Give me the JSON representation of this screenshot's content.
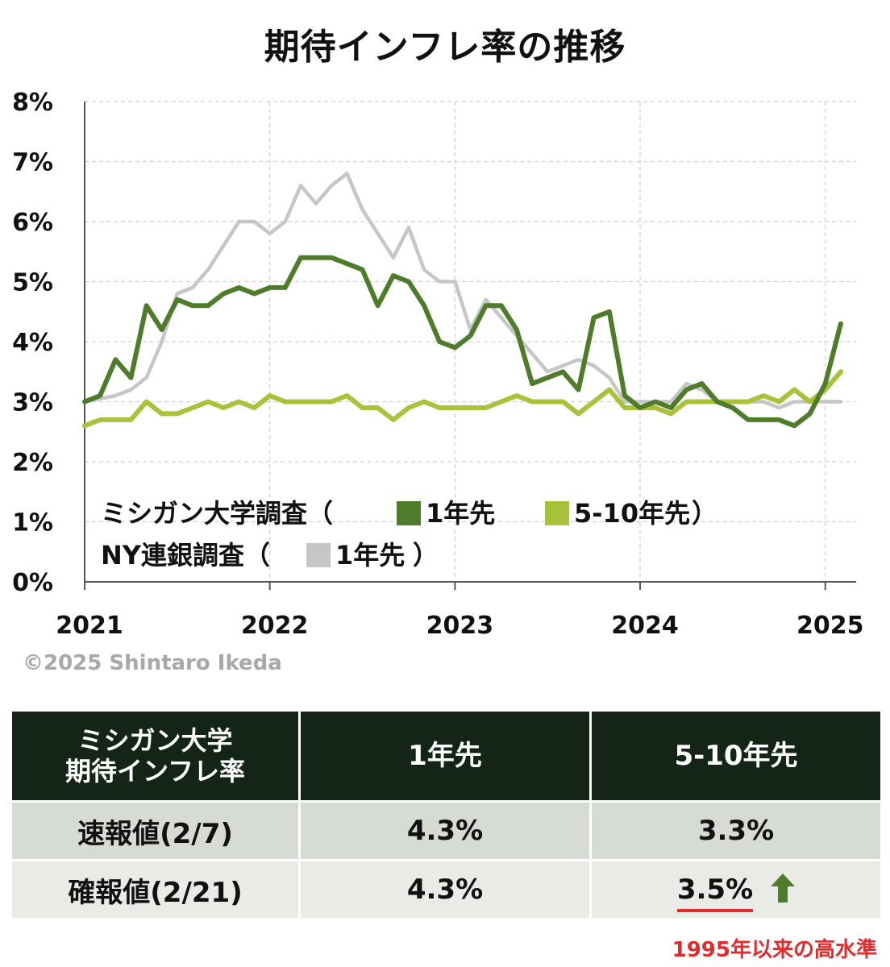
{
  "chart_data": {
    "type": "line",
    "title": "期待インフレ率の推移",
    "x_ticks": [
      "2021",
      "2022",
      "2023",
      "2024",
      "2025"
    ],
    "x_range": [
      "2021-01",
      "2025-03"
    ],
    "y_ticks": [
      "0%",
      "1%",
      "2%",
      "3%",
      "4%",
      "5%",
      "6%",
      "7%",
      "8%"
    ],
    "ylim": [
      0,
      8
    ],
    "grid": true,
    "legend_placement": "bottom-left",
    "legend": {
      "group1_label": "ミシガン大学調査（",
      "group1_close": "）",
      "group2_label": "NY連銀調査（",
      "group2_close": "）"
    },
    "series": [
      {
        "name": "1年先",
        "group": "ミシガン大学調査",
        "color": "#4e7c2a",
        "values": [
          [
            "2021-01",
            3.0
          ],
          [
            "2021-02",
            3.1
          ],
          [
            "2021-03",
            3.7
          ],
          [
            "2021-04",
            3.4
          ],
          [
            "2021-05",
            4.6
          ],
          [
            "2021-06",
            4.2
          ],
          [
            "2021-07",
            4.7
          ],
          [
            "2021-08",
            4.6
          ],
          [
            "2021-09",
            4.6
          ],
          [
            "2021-10",
            4.8
          ],
          [
            "2021-11",
            4.9
          ],
          [
            "2021-12",
            4.8
          ],
          [
            "2022-01",
            4.9
          ],
          [
            "2022-02",
            4.9
          ],
          [
            "2022-03",
            5.4
          ],
          [
            "2022-04",
            5.4
          ],
          [
            "2022-05",
            5.4
          ],
          [
            "2022-06",
            5.3
          ],
          [
            "2022-07",
            5.2
          ],
          [
            "2022-08",
            4.6
          ],
          [
            "2022-09",
            5.1
          ],
          [
            "2022-10",
            5.0
          ],
          [
            "2022-11",
            4.6
          ],
          [
            "2022-12",
            4.0
          ],
          [
            "2023-01",
            3.9
          ],
          [
            "2023-02",
            4.1
          ],
          [
            "2023-03",
            4.6
          ],
          [
            "2023-04",
            4.6
          ],
          [
            "2023-05",
            4.2
          ],
          [
            "2023-06",
            3.3
          ],
          [
            "2023-07",
            3.4
          ],
          [
            "2023-08",
            3.5
          ],
          [
            "2023-09",
            3.2
          ],
          [
            "2023-10",
            4.4
          ],
          [
            "2023-11",
            4.5
          ],
          [
            "2023-12",
            3.1
          ],
          [
            "2024-01",
            2.9
          ],
          [
            "2024-02",
            3.0
          ],
          [
            "2024-03",
            2.9
          ],
          [
            "2024-04",
            3.2
          ],
          [
            "2024-05",
            3.3
          ],
          [
            "2024-06",
            3.0
          ],
          [
            "2024-07",
            2.9
          ],
          [
            "2024-08",
            2.7
          ],
          [
            "2024-09",
            2.7
          ],
          [
            "2024-10",
            2.7
          ],
          [
            "2024-11",
            2.6
          ],
          [
            "2024-12",
            2.8
          ],
          [
            "2025-01",
            3.3
          ],
          [
            "2025-02",
            4.3
          ]
        ]
      },
      {
        "name": "5-10年先",
        "group": "ミシガン大学調査",
        "color": "#a8c23a",
        "values": [
          [
            "2021-01",
            2.6
          ],
          [
            "2021-02",
            2.7
          ],
          [
            "2021-03",
            2.7
          ],
          [
            "2021-04",
            2.7
          ],
          [
            "2021-05",
            3.0
          ],
          [
            "2021-06",
            2.8
          ],
          [
            "2021-07",
            2.8
          ],
          [
            "2021-08",
            2.9
          ],
          [
            "2021-09",
            3.0
          ],
          [
            "2021-10",
            2.9
          ],
          [
            "2021-11",
            3.0
          ],
          [
            "2021-12",
            2.9
          ],
          [
            "2022-01",
            3.1
          ],
          [
            "2022-02",
            3.0
          ],
          [
            "2022-03",
            3.0
          ],
          [
            "2022-04",
            3.0
          ],
          [
            "2022-05",
            3.0
          ],
          [
            "2022-06",
            3.1
          ],
          [
            "2022-07",
            2.9
          ],
          [
            "2022-08",
            2.9
          ],
          [
            "2022-09",
            2.7
          ],
          [
            "2022-10",
            2.9
          ],
          [
            "2022-11",
            3.0
          ],
          [
            "2022-12",
            2.9
          ],
          [
            "2023-01",
            2.9
          ],
          [
            "2023-02",
            2.9
          ],
          [
            "2023-03",
            2.9
          ],
          [
            "2023-04",
            3.0
          ],
          [
            "2023-05",
            3.1
          ],
          [
            "2023-06",
            3.0
          ],
          [
            "2023-07",
            3.0
          ],
          [
            "2023-08",
            3.0
          ],
          [
            "2023-09",
            2.8
          ],
          [
            "2023-10",
            3.0
          ],
          [
            "2023-11",
            3.2
          ],
          [
            "2023-12",
            2.9
          ],
          [
            "2024-01",
            2.9
          ],
          [
            "2024-02",
            2.9
          ],
          [
            "2024-03",
            2.8
          ],
          [
            "2024-04",
            3.0
          ],
          [
            "2024-05",
            3.0
          ],
          [
            "2024-06",
            3.0
          ],
          [
            "2024-07",
            3.0
          ],
          [
            "2024-08",
            3.0
          ],
          [
            "2024-09",
            3.1
          ],
          [
            "2024-10",
            3.0
          ],
          [
            "2024-11",
            3.2
          ],
          [
            "2024-12",
            3.0
          ],
          [
            "2025-01",
            3.2
          ],
          [
            "2025-02",
            3.5
          ]
        ]
      },
      {
        "name": "1年先",
        "group": "NY連銀調査",
        "color": "#c6c6c6",
        "values": [
          [
            "2021-01",
            3.0
          ],
          [
            "2021-02",
            3.05
          ],
          [
            "2021-03",
            3.1
          ],
          [
            "2021-04",
            3.2
          ],
          [
            "2021-05",
            3.4
          ],
          [
            "2021-06",
            4.0
          ],
          [
            "2021-07",
            4.8
          ],
          [
            "2021-08",
            4.9
          ],
          [
            "2021-09",
            5.2
          ],
          [
            "2021-10",
            5.6
          ],
          [
            "2021-11",
            6.0
          ],
          [
            "2021-12",
            6.0
          ],
          [
            "2022-01",
            5.8
          ],
          [
            "2022-02",
            6.0
          ],
          [
            "2022-03",
            6.6
          ],
          [
            "2022-04",
            6.3
          ],
          [
            "2022-05",
            6.6
          ],
          [
            "2022-06",
            6.8
          ],
          [
            "2022-07",
            6.2
          ],
          [
            "2022-08",
            5.8
          ],
          [
            "2022-09",
            5.4
          ],
          [
            "2022-10",
            5.9
          ],
          [
            "2022-11",
            5.2
          ],
          [
            "2022-12",
            5.0
          ],
          [
            "2023-01",
            5.0
          ],
          [
            "2023-02",
            4.2
          ],
          [
            "2023-03",
            4.7
          ],
          [
            "2023-04",
            4.4
          ],
          [
            "2023-05",
            4.1
          ],
          [
            "2023-06",
            3.8
          ],
          [
            "2023-07",
            3.5
          ],
          [
            "2023-08",
            3.6
          ],
          [
            "2023-09",
            3.7
          ],
          [
            "2023-10",
            3.6
          ],
          [
            "2023-11",
            3.4
          ],
          [
            "2023-12",
            3.0
          ],
          [
            "2024-01",
            3.0
          ],
          [
            "2024-02",
            3.0
          ],
          [
            "2024-03",
            3.0
          ],
          [
            "2024-04",
            3.3
          ],
          [
            "2024-05",
            3.2
          ],
          [
            "2024-06",
            3.0
          ],
          [
            "2024-07",
            3.0
          ],
          [
            "2024-08",
            3.0
          ],
          [
            "2024-09",
            3.0
          ],
          [
            "2024-10",
            2.9
          ],
          [
            "2024-11",
            3.0
          ],
          [
            "2024-12",
            3.0
          ],
          [
            "2025-01",
            3.0
          ],
          [
            "2025-02",
            3.0
          ]
        ]
      }
    ]
  },
  "copyright": "©2025 Shintaro Ikeda",
  "table": {
    "header_line1": "ミシガン大学",
    "header_line2": "期待インフレ率",
    "col1": "1年先",
    "col2": "5-10年先",
    "rows": [
      {
        "label": "速報値(2/7)",
        "one_year": "4.3%",
        "five_ten": "3.3%"
      },
      {
        "label": "確報値(2/21)",
        "one_year": "4.3%",
        "five_ten": "3.5%"
      }
    ],
    "highlight_color": "#e32b2b",
    "arrow_color": "#4e7c2a"
  },
  "note": "1995年以来の高水準"
}
